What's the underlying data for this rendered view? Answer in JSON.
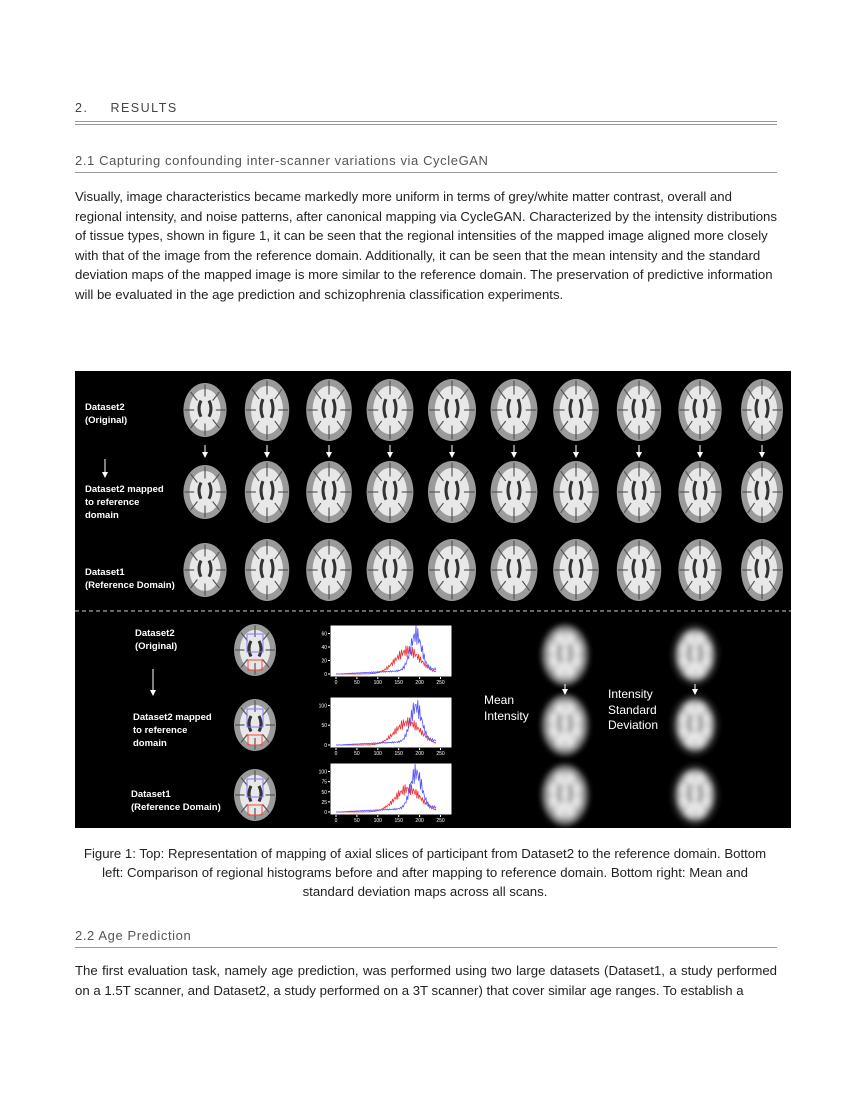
{
  "header": {
    "number": "2.",
    "title": "RESULTS"
  },
  "section_1": {
    "heading": "2.1 Capturing confounding inter-scanner variations via CycleGAN",
    "paragraph": "Visually, image characteristics became markedly more uniform in terms of grey/white matter contrast, overall and regional intensity, and noise patterns, after canonical mapping via CycleGAN. Characterized by the intensity distributions of tissue types, shown in figure 1, it can be seen that the regional intensities of the mapped image aligned more closely with that of the image from the reference domain. Additionally, it can be seen that the mean intensity and the standard deviation maps of the mapped image is more similar to the reference domain. The preservation of predictive information will be evaluated in the age prediction and schizophrenia classification experiments."
  },
  "figure": {
    "top_labels": [
      "Dataset2\n(Original)",
      "Dataset2 mapped\nto reference\ndomain",
      "Dataset1\n(Reference Domain)"
    ],
    "bottom_labels": [
      "Dataset2\n(Original)",
      "Dataset2 mapped\nto reference\ndomain",
      "Dataset1\n(Reference Domain)"
    ],
    "map_labels": [
      "Mean\nIntensity",
      "Intensity\nStandard\nDeviation"
    ],
    "histograms": [
      {
        "yticks": [
          0,
          20,
          40,
          60
        ],
        "xticks": [
          0,
          50,
          100,
          150,
          200,
          250
        ]
      },
      {
        "yticks": [
          0,
          50,
          100
        ],
        "xticks": [
          0,
          50,
          100,
          150,
          200,
          250
        ]
      },
      {
        "yticks": [
          0,
          25,
          50,
          75,
          100
        ],
        "xticks": [
          0,
          50,
          100,
          150,
          200,
          250
        ]
      }
    ],
    "caption": "Figure 1: Top: Representation of mapping of axial slices of participant from Dataset2 to the reference domain. Bottom left: Comparison of regional histograms before and after mapping to reference domain. Bottom right: Mean and standard deviation maps across all scans."
  },
  "section_2": {
    "heading": "2.2 Age Prediction",
    "paragraph": "The first evaluation task, namely age prediction, was performed using two large datasets (Dataset1, a study performed on a 1.5T scanner, and Dataset2, a study performed on a 3T scanner) that cover similar age ranges. To establish a"
  }
}
